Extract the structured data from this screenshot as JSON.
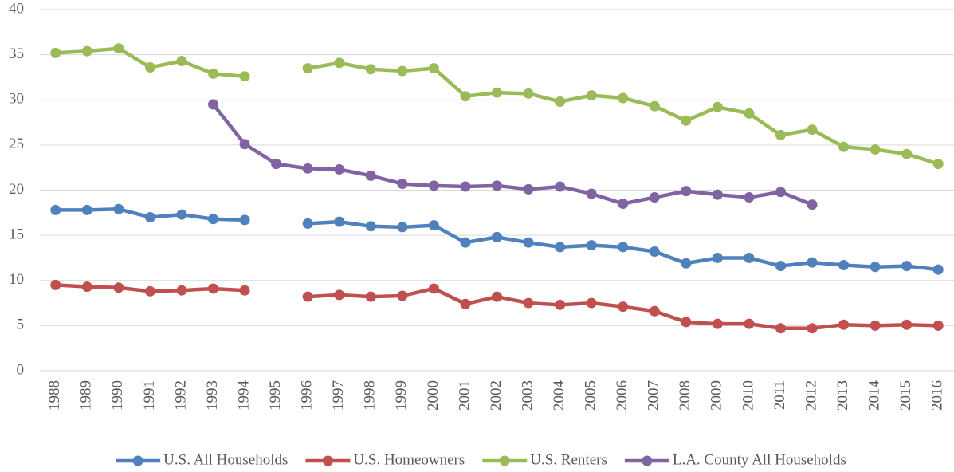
{
  "chart_data": {
    "type": "line",
    "categories": [
      "1988",
      "1989",
      "1990",
      "1991",
      "1992",
      "1993",
      "1994",
      "1995",
      "1996",
      "1997",
      "1998",
      "1999",
      "2000",
      "2001",
      "2002",
      "2003",
      "2004",
      "2005",
      "2006",
      "2007",
      "2008",
      "2009",
      "2010",
      "2011",
      "2012",
      "2013",
      "2014",
      "2015",
      "2016"
    ],
    "series": [
      {
        "name": "U.S. All Households",
        "color": "#4f81bd",
        "values": [
          17.8,
          17.8,
          17.9,
          17.0,
          17.3,
          16.8,
          16.7,
          null,
          16.3,
          16.5,
          16.0,
          15.9,
          16.1,
          14.2,
          14.8,
          14.2,
          13.7,
          13.9,
          13.7,
          13.2,
          11.9,
          12.5,
          12.5,
          11.6,
          12.0,
          11.7,
          11.5,
          11.6,
          11.2
        ]
      },
      {
        "name": "U.S. Homeowners",
        "color": "#c0504d",
        "values": [
          9.5,
          9.3,
          9.2,
          8.8,
          8.9,
          9.1,
          8.9,
          null,
          8.2,
          8.4,
          8.2,
          8.3,
          9.1,
          7.4,
          8.2,
          7.5,
          7.3,
          7.5,
          7.1,
          6.6,
          5.4,
          5.2,
          5.2,
          4.7,
          4.7,
          5.1,
          5.0,
          5.1,
          5.0
        ]
      },
      {
        "name": "U.S. Renters",
        "color": "#9bbb59",
        "values": [
          35.2,
          35.4,
          35.7,
          33.6,
          34.3,
          32.9,
          32.6,
          null,
          33.5,
          34.1,
          33.4,
          33.2,
          33.5,
          30.4,
          30.8,
          30.7,
          29.8,
          30.5,
          30.2,
          29.3,
          27.7,
          29.2,
          28.5,
          26.1,
          26.7,
          24.8,
          24.5,
          24.0,
          22.9
        ]
      },
      {
        "name": "L.A. County All Households",
        "color": "#8064a2",
        "values": [
          null,
          null,
          null,
          null,
          null,
          29.5,
          25.1,
          22.9,
          22.4,
          22.3,
          21.6,
          20.7,
          20.5,
          20.4,
          20.5,
          20.1,
          20.4,
          19.6,
          18.5,
          19.2,
          19.9,
          19.5,
          19.2,
          19.8,
          18.4,
          null,
          null,
          null,
          null
        ]
      }
    ],
    "ylim": [
      0,
      40
    ],
    "yticks": [
      0,
      5,
      10,
      15,
      20,
      25,
      30,
      35,
      40
    ],
    "grid": true,
    "legend": "bottom"
  }
}
